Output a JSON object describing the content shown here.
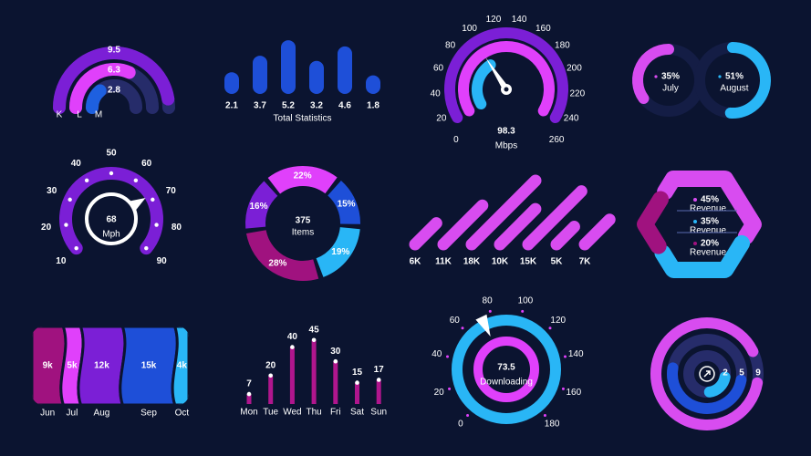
{
  "chart_data": [
    {
      "type": "radial-bar",
      "categories": [
        "K",
        "L",
        "M"
      ],
      "values": [
        9.5,
        6.3,
        2.8
      ],
      "colors": [
        "#7b1fd6",
        "#e040fb",
        "#1e60e0"
      ],
      "ylim": [
        0,
        10
      ]
    },
    {
      "type": "bar",
      "subtitle": "Total Statistics",
      "values": [
        2.1,
        3.7,
        5.2,
        3.2,
        4.6,
        1.8
      ],
      "color": "#1e4fd8",
      "ylim": [
        0,
        6
      ]
    },
    {
      "type": "gauge",
      "value": 98.3,
      "unit": "Mbps",
      "ylim": [
        0,
        260
      ],
      "yticks": [
        0,
        20,
        40,
        60,
        80,
        100,
        120,
        140,
        160,
        180,
        200,
        220,
        240,
        260
      ]
    },
    {
      "type": "progress",
      "categories": [
        "July",
        "August"
      ],
      "values": [
        35,
        51
      ],
      "value_labels": [
        "35%",
        "51%"
      ],
      "colors": [
        "#d84cf0",
        "#29b6f6"
      ],
      "ylim": [
        0,
        100
      ]
    },
    {
      "type": "gauge",
      "value": 68,
      "unit": "Mph",
      "ylim": [
        10,
        90
      ],
      "yticks": [
        10,
        20,
        30,
        40,
        50,
        60,
        70,
        80,
        90
      ]
    },
    {
      "type": "donut",
      "total": 375,
      "subtitle": "Items",
      "values": [
        22,
        15,
        19,
        28,
        16
      ],
      "value_labels": [
        "22%",
        "15%",
        "19%",
        "28%",
        "16%"
      ],
      "colors": [
        "#e040fb",
        "#1e4fd8",
        "#29b6f6",
        "#a0127f",
        "#7b1fd6"
      ]
    },
    {
      "type": "slanted-bar",
      "values": [
        6000,
        11000,
        18000,
        10000,
        15000,
        5000,
        7000
      ],
      "value_labels": [
        "6K",
        "11K",
        "18K",
        "10K",
        "15K",
        "5K",
        "7K"
      ],
      "color": "#d84cf0",
      "ylim": [
        0,
        20000
      ]
    },
    {
      "type": "hexagon-donut",
      "categories": [
        "Revenue",
        "Revenue",
        "Revenue"
      ],
      "values": [
        45,
        35,
        20
      ],
      "value_labels": [
        "45%",
        "35%",
        "20%"
      ],
      "colors": [
        "#d84cf0",
        "#29b6f6",
        "#a0127f"
      ]
    },
    {
      "type": "stream",
      "categories": [
        "Jun",
        "Jul",
        "Aug",
        "Sep",
        "Oct"
      ],
      "values": [
        9000,
        5000,
        12000,
        15000,
        4000
      ],
      "value_labels": [
        "9k",
        "5k",
        "12k",
        "15k",
        "4k"
      ],
      "colors": [
        "#a0127f",
        "#e040fb",
        "#7b1fd6",
        "#1e4fd8",
        "#29b6f6"
      ]
    },
    {
      "type": "lollipop",
      "categories": [
        "Mon",
        "Tue",
        "Wed",
        "Thu",
        "Fri",
        "Sat",
        "Sun"
      ],
      "values": [
        7,
        20,
        40,
        45,
        30,
        15,
        17
      ],
      "color": "#b0168d",
      "ylim": [
        0,
        50
      ]
    },
    {
      "type": "gauge",
      "value": 73.5,
      "unit": "Downloading",
      "ylim": [
        0,
        180
      ],
      "yticks": [
        0,
        20,
        40,
        60,
        80,
        100,
        120,
        140,
        160,
        180
      ]
    },
    {
      "type": "radial-bar",
      "values": [
        2,
        5,
        9
      ],
      "colors": [
        "#29b6f6",
        "#1e4fd8",
        "#d84cf0"
      ],
      "ylim": [
        0,
        10
      ]
    }
  ]
}
